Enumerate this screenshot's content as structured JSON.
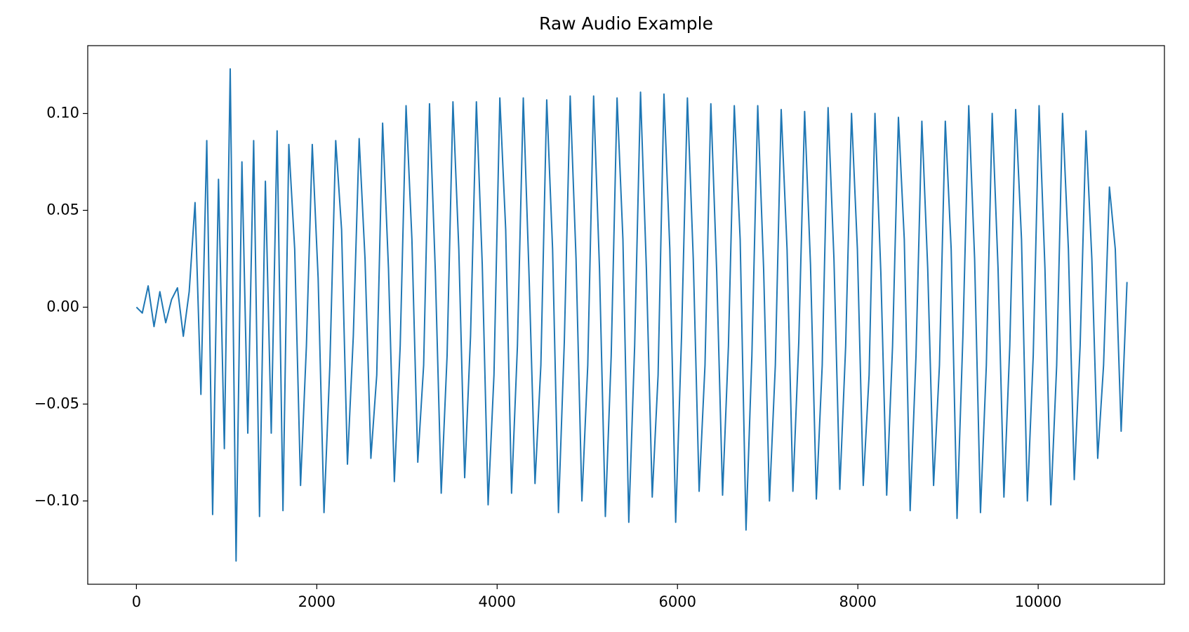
{
  "chart_data": {
    "type": "line",
    "title": "Raw Audio Example",
    "x": [
      0,
      65,
      130,
      195,
      260,
      325,
      390,
      455,
      520,
      585,
      650,
      715,
      780,
      845,
      910,
      975,
      1040,
      1105,
      1170,
      1235,
      1300,
      1365,
      1430,
      1495,
      1560,
      1625,
      1690,
      1755,
      1820,
      1885,
      1950,
      2015,
      2080,
      2145,
      2210,
      2275,
      2340,
      2405,
      2470,
      2535,
      2600,
      2665,
      2730,
      2795,
      2860,
      2925,
      2990,
      3055,
      3120,
      3185,
      3250,
      3315,
      3380,
      3445,
      3510,
      3575,
      3640,
      3705,
      3770,
      3835,
      3900,
      3965,
      4030,
      4095,
      4160,
      4225,
      4290,
      4355,
      4420,
      4485,
      4550,
      4615,
      4680,
      4745,
      4810,
      4875,
      4940,
      5005,
      5070,
      5135,
      5200,
      5265,
      5330,
      5395,
      5460,
      5525,
      5590,
      5655,
      5720,
      5785,
      5850,
      5915,
      5980,
      6045,
      6110,
      6175,
      6240,
      6305,
      6370,
      6435,
      6500,
      6565,
      6630,
      6695,
      6760,
      6825,
      6890,
      6955,
      7020,
      7085,
      7150,
      7215,
      7280,
      7345,
      7410,
      7475,
      7540,
      7605,
      7670,
      7735,
      7800,
      7865,
      7930,
      7995,
      8060,
      8125,
      8190,
      8255,
      8320,
      8385,
      8450,
      8515,
      8580,
      8645,
      8710,
      8775,
      8840,
      8905,
      8970,
      9035,
      9100,
      9165,
      9230,
      9295,
      9360,
      9425,
      9490,
      9555,
      9620,
      9685,
      9750,
      9815,
      9880,
      9945,
      10010,
      10075,
      10140,
      10205,
      10270,
      10335,
      10400,
      10465,
      10530,
      10595,
      10660,
      10725,
      10790,
      10855,
      10920,
      10985
    ],
    "series": [
      {
        "color": "#1f77b4",
        "values": [
          0,
          -0.003,
          0.011,
          -0.01,
          0.008,
          -0.008,
          0.004,
          0.01,
          -0.015,
          0.008,
          0.054,
          -0.045,
          0.086,
          -0.107,
          0.066,
          -0.073,
          0.123,
          -0.131,
          0.075,
          -0.065,
          0.086,
          -0.108,
          0.065,
          -0.065,
          0.091,
          -0.105,
          0.084,
          0.03,
          -0.092,
          -0.02,
          0.084,
          0.015,
          -0.106,
          -0.03,
          0.086,
          0.04,
          -0.081,
          -0.015,
          0.087,
          0.025,
          -0.078,
          -0.035,
          0.095,
          0.02,
          -0.09,
          -0.02,
          0.104,
          0.035,
          -0.08,
          -0.03,
          0.105,
          0.018,
          -0.096,
          -0.025,
          0.106,
          0.03,
          -0.088,
          -0.015,
          0.106,
          0.022,
          -0.102,
          -0.035,
          0.108,
          0.04,
          -0.096,
          -0.02,
          0.108,
          0.015,
          -0.091,
          -0.03,
          0.107,
          0.03,
          -0.106,
          -0.018,
          0.109,
          0.025,
          -0.1,
          -0.03,
          0.109,
          0.02,
          -0.108,
          -0.025,
          0.108,
          0.035,
          -0.111,
          -0.02,
          0.111,
          0.02,
          -0.098,
          -0.035,
          0.11,
          0.03,
          -0.111,
          -0.015,
          0.108,
          0.025,
          -0.095,
          -0.03,
          0.105,
          0.018,
          -0.097,
          -0.02,
          0.104,
          0.035,
          -0.115,
          -0.025,
          0.104,
          0.02,
          -0.1,
          -0.03,
          0.102,
          0.03,
          -0.095,
          -0.018,
          0.101,
          0.022,
          -0.099,
          -0.03,
          0.103,
          0.025,
          -0.094,
          -0.02,
          0.1,
          0.03,
          -0.092,
          -0.035,
          0.1,
          0.018,
          -0.097,
          -0.02,
          0.098,
          0.035,
          -0.105,
          -0.025,
          0.096,
          0.02,
          -0.092,
          -0.03,
          0.096,
          0.03,
          -0.109,
          -0.015,
          0.104,
          0.025,
          -0.106,
          -0.03,
          0.1,
          0.02,
          -0.098,
          -0.02,
          0.102,
          0.035,
          -0.1,
          -0.025,
          0.104,
          0.02,
          -0.102,
          -0.03,
          0.1,
          0.03,
          -0.089,
          -0.02,
          0.091,
          0.025,
          -0.078,
          -0.03,
          0.062,
          0.03,
          -0.064,
          0.013
        ]
      }
    ],
    "xlim": [
      -540,
      11400
    ],
    "ylim": [
      -0.143,
      0.135
    ],
    "xticks": [
      0,
      2000,
      4000,
      6000,
      8000,
      10000
    ],
    "yticks": [
      {
        "value": -0.1,
        "label": "−0.10"
      },
      {
        "value": -0.05,
        "label": "−0.05"
      },
      {
        "value": 0,
        "label": "0.00"
      },
      {
        "value": 0.05,
        "label": "0.05"
      },
      {
        "value": 0.1,
        "label": "0.10"
      }
    ]
  }
}
